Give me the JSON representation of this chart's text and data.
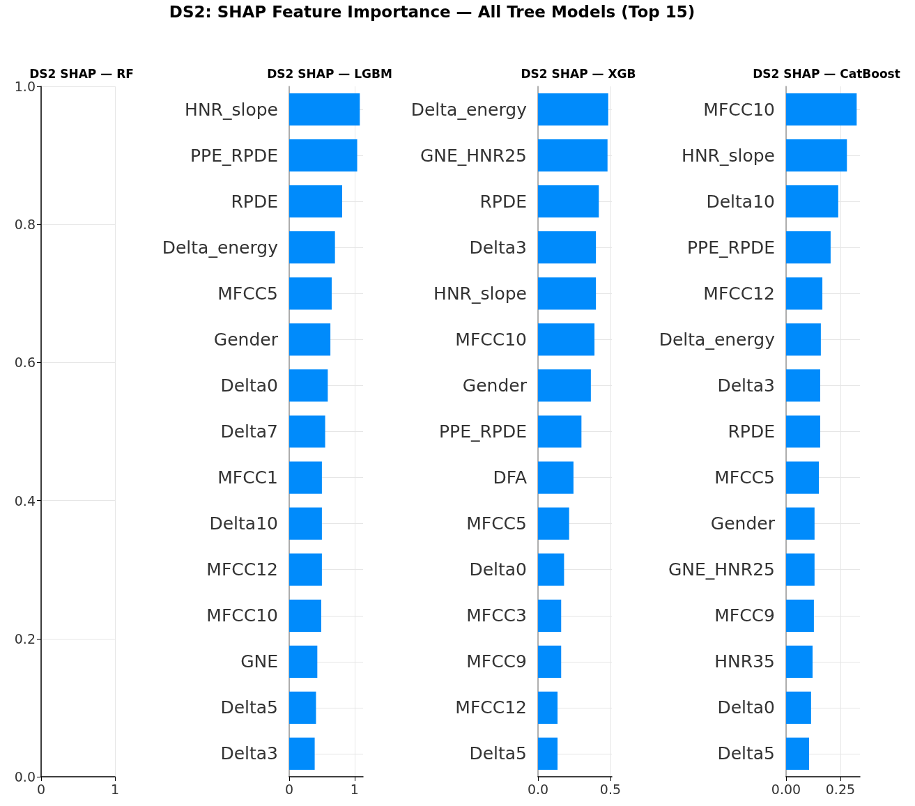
{
  "chart_data": [
    {
      "type": "other",
      "title": "DS2: SHAP Feature Importance — All Tree Models (Top 15)"
    },
    {
      "type": "scatter",
      "title": "DS2 SHAP — RF",
      "xlim": [
        0,
        1
      ],
      "xticks": [
        {
          "value": 0,
          "label": "0"
        },
        {
          "value": 1,
          "label": "1"
        }
      ],
      "ylim": [
        0,
        1
      ],
      "yticks": [
        {
          "value": 0,
          "label": "0.0"
        },
        {
          "value": 0.2,
          "label": "0.2"
        },
        {
          "value": 0.4,
          "label": "0.4"
        },
        {
          "value": 0.6,
          "label": "0.6"
        },
        {
          "value": 0.8,
          "label": "0.8"
        },
        {
          "value": 1,
          "label": "1.0"
        }
      ],
      "grid": true
    },
    {
      "type": "bar",
      "orientation": "horizontal",
      "title": "DS2 SHAP — LGBM",
      "color": "#008bfb",
      "grid": true,
      "xlim": [
        0,
        1.13
      ],
      "xticks": [
        0,
        1
      ],
      "categories": [
        "HNR_slope",
        "PPE_RPDE",
        "RPDE",
        "Delta_energy",
        "MFCC5",
        "Gender",
        "Delta0",
        "Delta7",
        "MFCC1",
        "Delta10",
        "MFCC12",
        "MFCC10",
        "GNE",
        "Delta5",
        "Delta3"
      ],
      "values": [
        1.08,
        1.04,
        0.81,
        0.7,
        0.65,
        0.63,
        0.59,
        0.55,
        0.5,
        0.5,
        0.5,
        0.49,
        0.43,
        0.41,
        0.39
      ]
    },
    {
      "type": "bar",
      "orientation": "horizontal",
      "title": "DS2 SHAP — XGB",
      "color": "#008bfb",
      "grid": true,
      "xlim": [
        0,
        0.51
      ],
      "xticks": [
        {
          "value": 0,
          "label": "0.0"
        },
        {
          "value": 0.5,
          "label": "0.5"
        }
      ],
      "categories": [
        "Delta_energy",
        "GNE_HNR25",
        "RPDE",
        "Delta3",
        "HNR_slope",
        "MFCC10",
        "Gender",
        "PPE_RPDE",
        "DFA",
        "MFCC5",
        "Delta0",
        "MFCC3",
        "MFCC9",
        "MFCC12",
        "Delta5"
      ],
      "values": [
        0.485,
        0.48,
        0.42,
        0.4,
        0.4,
        0.39,
        0.365,
        0.3,
        0.245,
        0.215,
        0.18,
        0.16,
        0.16,
        0.135,
        0.135
      ]
    },
    {
      "type": "bar",
      "orientation": "horizontal",
      "title": "DS2 SHAP — CatBoost",
      "color": "#008bfb",
      "grid": true,
      "xlim": [
        0,
        0.34
      ],
      "xticks": [
        {
          "value": 0,
          "label": "0.00"
        },
        {
          "value": 0.25,
          "label": "0.25"
        }
      ],
      "categories": [
        "MFCC10",
        "HNR_slope",
        "Delta10",
        "PPE_RPDE",
        "MFCC12",
        "Delta_energy",
        "Delta3",
        "RPDE",
        "MFCC5",
        "Gender",
        "GNE_HNR25",
        "MFCC9",
        "HNR35",
        "Delta0",
        "Delta5"
      ],
      "values": [
        0.325,
        0.28,
        0.24,
        0.205,
        0.167,
        0.16,
        0.157,
        0.157,
        0.151,
        0.131,
        0.131,
        0.128,
        0.122,
        0.115,
        0.106
      ]
    }
  ]
}
